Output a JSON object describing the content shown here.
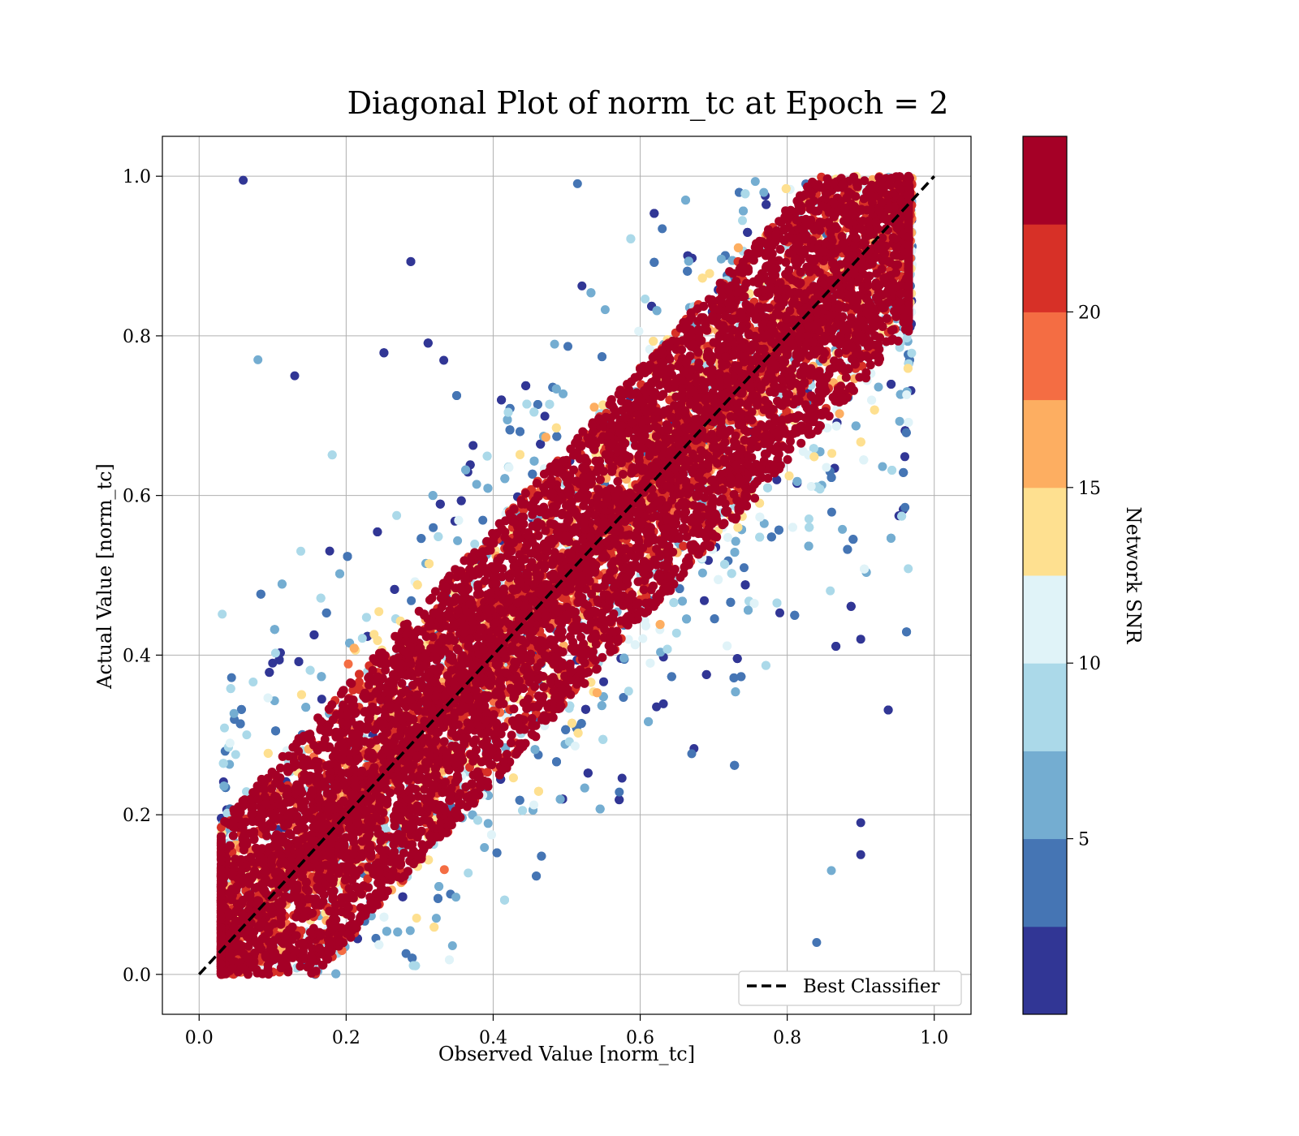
{
  "chart_data": {
    "type": "scatter",
    "title": "Diagonal Plot of norm_tc at Epoch = 2",
    "xlabel": "Observed Value [norm_tc]",
    "ylabel": "Actual Value [norm_tc]",
    "xlim": [
      -0.05,
      1.05
    ],
    "ylim": [
      -0.05,
      1.05
    ],
    "xticks": [
      "0.0",
      "0.2",
      "0.4",
      "0.6",
      "0.8",
      "1.0"
    ],
    "yticks": [
      "0.0",
      "0.2",
      "0.4",
      "0.6",
      "0.8",
      "1.0"
    ],
    "xtick_values": [
      0.0,
      0.2,
      0.4,
      0.6,
      0.8,
      1.0
    ],
    "ytick_values": [
      0.0,
      0.2,
      0.4,
      0.6,
      0.8,
      1.0
    ],
    "grid": true,
    "reference_line": {
      "name": "Best Classifier",
      "style": "dashed",
      "color": "#000000",
      "points": [
        [
          0.0,
          0.0
        ],
        [
          1.0,
          1.0
        ]
      ]
    },
    "legend": {
      "placement": "lower-right",
      "entries": [
        "Best Classifier"
      ]
    },
    "colorbar": {
      "label": "Network SNR",
      "ticks": [
        "5",
        "10",
        "15",
        "20"
      ],
      "tick_values": [
        5,
        10,
        15,
        20
      ],
      "range": [
        0,
        25
      ],
      "colormap": "RdYlBu_r",
      "bins": 10,
      "bin_colors": [
        "#313695",
        "#4575b4",
        "#74add1",
        "#abd9e9",
        "#e0f3f8",
        "#fee090",
        "#fdae61",
        "#f46d43",
        "#d73027",
        "#a50026"
      ]
    },
    "series": [
      {
        "description_color_by": "Network SNR",
        "points_summary": [
          {
            "x": 0.06,
            "y": 0.995,
            "snr": 1
          },
          {
            "x": 0.08,
            "y": 0.77,
            "snr": 7
          },
          {
            "x": 0.13,
            "y": 0.75,
            "snr": 1
          },
          {
            "x": 0.1,
            "y": 0.39,
            "snr": 1
          },
          {
            "x": 0.9,
            "y": 0.42,
            "snr": 1
          },
          {
            "x": 0.9,
            "y": 0.19,
            "snr": 1
          },
          {
            "x": 0.9,
            "y": 0.15,
            "snr": 1
          },
          {
            "x": 0.86,
            "y": 0.13,
            "snr": 6
          },
          {
            "x": 0.84,
            "y": 0.04,
            "snr": 3
          },
          {
            "x": 0.03,
            "y": 0.0,
            "snr": 23
          },
          {
            "x": 0.5,
            "y": 0.5,
            "snr": 23
          },
          {
            "x": 0.95,
            "y": 0.99,
            "snr": 23
          }
        ]
      }
    ]
  }
}
